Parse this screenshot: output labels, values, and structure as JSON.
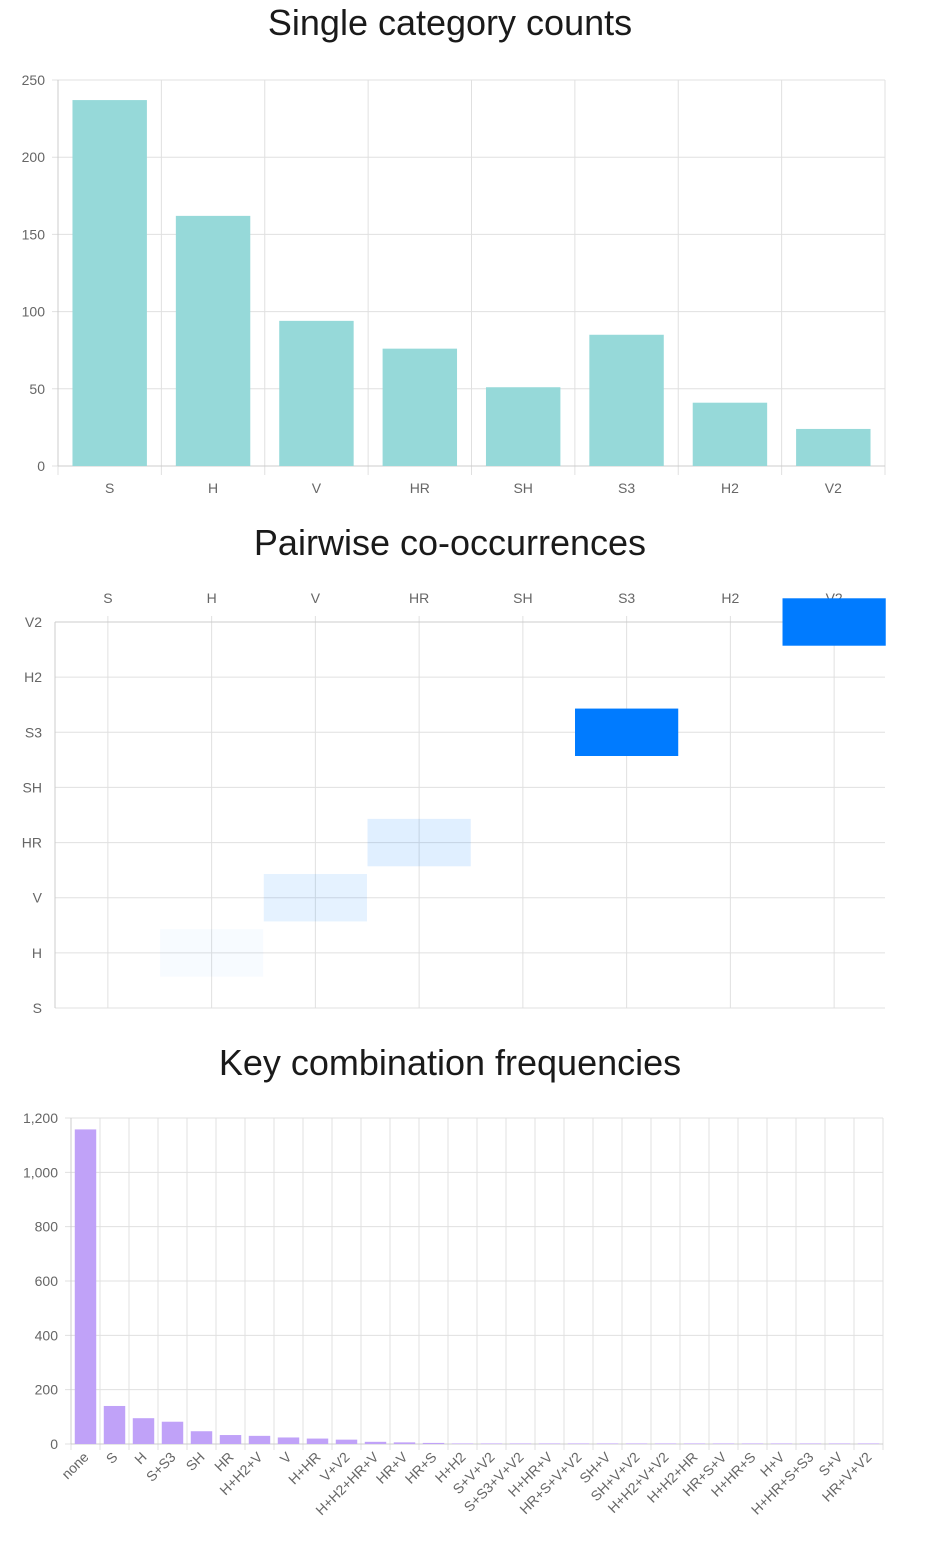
{
  "charts": {
    "bar1_title": "Single category counts",
    "heat_title": "Pairwise co-occurrences",
    "combo_title": "Key combination frequencies"
  },
  "colors": {
    "bar1": "#96d9d9",
    "combo": "#c0a2f8",
    "heat": "#007bff",
    "grid": "#e0e0e0",
    "tick": "#666666"
  },
  "chart_data": [
    {
      "type": "bar",
      "title": "Single category counts",
      "categories": [
        "S",
        "H",
        "V",
        "HR",
        "SH",
        "S3",
        "H2",
        "V2"
      ],
      "values": [
        237,
        162,
        94,
        76,
        51,
        85,
        41,
        24
      ],
      "ylim": [
        0,
        250
      ],
      "yticks": [
        "0",
        "50",
        "100",
        "150",
        "200",
        "250"
      ],
      "grid": true
    },
    {
      "type": "heatmap",
      "title": "Pairwise co-occurrences",
      "x_categories": [
        "S",
        "H",
        "V",
        "HR",
        "SH",
        "S3",
        "H2",
        "V2"
      ],
      "y_categories": [
        "V2",
        "H2",
        "S3",
        "SH",
        "HR",
        "V",
        "H",
        "S"
      ],
      "cells": [
        {
          "x": "H",
          "y": "H",
          "intensity": 0.03
        },
        {
          "x": "V",
          "y": "V",
          "intensity": 0.1
        },
        {
          "x": "HR",
          "y": "HR",
          "intensity": 0.12
        },
        {
          "x": "S3",
          "y": "S3",
          "intensity": 1.0
        },
        {
          "x": "V2",
          "y": "V2",
          "intensity": 1.0
        }
      ],
      "grid": true
    },
    {
      "type": "bar",
      "title": "Key combination frequencies",
      "categories": [
        "none",
        "S",
        "H",
        "S+S3",
        "SH",
        "HR",
        "H+H2+V",
        "V",
        "H+HR",
        "V+V2",
        "H+H2+HR+V",
        "HR+V",
        "HR+S",
        "H+H2",
        "S+V+V2",
        "S+S3+V+V2",
        "H+HR+V",
        "HR+S+V+V2",
        "SH+V",
        "SH+V+V2",
        "H+H2+V+V2",
        "H+H2+HR",
        "HR+S+V",
        "H+HR+S",
        "H+V",
        "H+HR+S+S3",
        "S+V",
        "HR+V+V2"
      ],
      "values": [
        1158,
        140,
        95,
        82,
        47,
        33,
        30,
        24,
        20,
        16,
        8,
        6,
        4,
        2,
        2,
        2,
        2,
        2,
        2,
        2,
        2,
        2,
        2,
        2,
        2,
        2,
        2,
        2
      ],
      "ylim": [
        0,
        1200
      ],
      "yticks": [
        "0",
        "200",
        "400",
        "600",
        "800",
        "1,000",
        "1,200"
      ],
      "grid": true
    }
  ]
}
